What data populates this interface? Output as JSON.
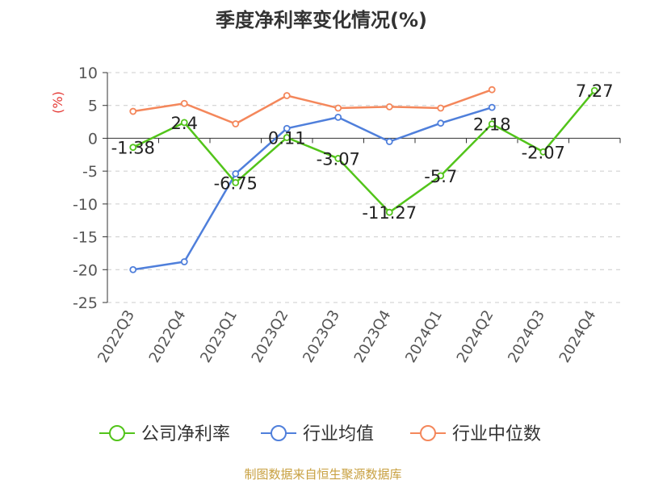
{
  "chart_data": {
    "type": "line",
    "title": "季度净利率变化情况(%)",
    "ylabel": "(%)",
    "ylim": [
      -25,
      10
    ],
    "yticks": [
      10,
      5,
      0,
      -5,
      -10,
      -15,
      -20,
      -25
    ],
    "categories": [
      "2022Q3",
      "2022Q4",
      "2023Q1",
      "2023Q2",
      "2023Q3",
      "2023Q4",
      "2024Q1",
      "2024Q2",
      "2024Q3",
      "2024Q4"
    ],
    "series": [
      {
        "name": "公司净利率",
        "color": "#52c41a",
        "values": [
          -1.38,
          2.4,
          -6.75,
          0.11,
          -3.07,
          -11.27,
          -5.7,
          2.18,
          -2.07,
          7.27
        ],
        "labels": [
          "-1.38",
          "2.4",
          "-6.75",
          "0.11",
          "-3.07",
          "-11.27",
          "-5.7",
          "2.18",
          "-2.07",
          "7.27"
        ]
      },
      {
        "name": "行业均值",
        "color": "#4f7fdb",
        "values": [
          -20.0,
          -18.8,
          -5.4,
          1.5,
          3.2,
          -0.5,
          2.3,
          4.7,
          null,
          null
        ]
      },
      {
        "name": "行业中位数",
        "color": "#f4875b",
        "values": [
          4.1,
          5.3,
          2.2,
          6.5,
          4.6,
          4.8,
          4.6,
          7.4,
          null,
          null
        ]
      }
    ],
    "grid": true,
    "legend_position": "bottom"
  },
  "footer": {
    "source": "制图数据来自恒生聚源数据库"
  }
}
